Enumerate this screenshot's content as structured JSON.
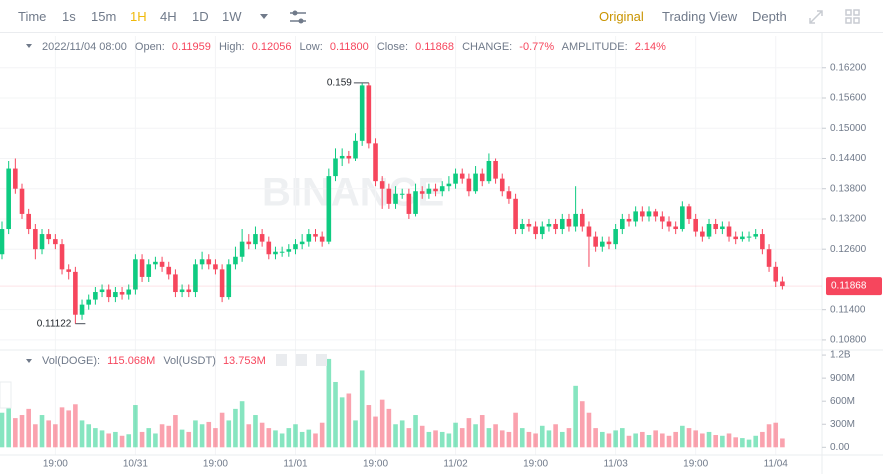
{
  "toolbar": {
    "intervals": [
      "Time",
      "1s",
      "15m",
      "1H",
      "4H",
      "1D",
      "1W"
    ],
    "views": [
      "Original",
      "Trading View",
      "Depth"
    ]
  },
  "header": {
    "date": "2022/11/04 08:00",
    "open_label": "Open:",
    "open": "0.11959",
    "high_label": "High:",
    "high": "0.12056",
    "low_label": "Low:",
    "low": "0.11800",
    "close_label": "Close:",
    "close": "0.11868",
    "change_label": "CHANGE:",
    "change": "-0.77%",
    "amplitude_label": "AMPLITUDE:",
    "amplitude": "2.14%"
  },
  "volume_legend": {
    "vol_doge_label": "Vol(DOGE):",
    "vol_doge": "115.068M",
    "vol_usdt_label": "Vol(USDT)",
    "vol_usdt": "13.753M"
  },
  "chart_data": {
    "type": "candlestick",
    "watermark": "BINANCE",
    "up_color": "#0ecb81",
    "down_color": "#f6465d",
    "grid": true,
    "open": [
      0.125,
      0.13,
      0.142,
      0.138,
      0.133,
      0.13,
      0.126,
      0.129,
      0.128,
      0.127,
      0.122,
      0.1215,
      0.113,
      0.115,
      0.116,
      0.1175,
      0.118,
      0.1165,
      0.1175,
      0.117,
      0.118,
      0.124,
      0.1205,
      0.123,
      0.1235,
      0.1225,
      0.121,
      0.1175,
      0.118,
      0.1175,
      0.123,
      0.124,
      0.123,
      0.122,
      0.1165,
      0.123,
      0.1245,
      0.1275,
      0.127,
      0.129,
      0.1275,
      0.125,
      0.1255,
      0.1255,
      0.126,
      0.127,
      0.1275,
      0.129,
      0.1285,
      0.1275,
      0.1405,
      0.144,
      0.1445,
      0.144,
      0.1475,
      0.1585,
      0.147,
      0.1395,
      0.138,
      0.135,
      0.137,
      0.137,
      0.133,
      0.1375,
      0.137,
      0.138,
      0.1375,
      0.1385,
      0.139,
      0.141,
      0.14,
      0.1375,
      0.141,
      0.1395,
      0.1435,
      0.14,
      0.1375,
      0.136,
      0.13,
      0.131,
      0.1305,
      0.129,
      0.1305,
      0.131,
      0.13,
      0.132,
      0.1305,
      0.133,
      0.1305,
      0.1285,
      0.1265,
      0.1275,
      0.127,
      0.13,
      0.132,
      0.1315,
      0.1335,
      0.1325,
      0.1335,
      0.1325,
      0.1315,
      0.1305,
      0.13,
      0.1345,
      0.132,
      0.1295,
      0.1285,
      0.131,
      0.13,
      0.1305,
      0.1285,
      0.128,
      0.1285,
      0.1285,
      0.129,
      0.126,
      0.1225,
      0.11959
    ],
    "high": [
      0.1315,
      0.1435,
      0.144,
      0.139,
      0.134,
      0.131,
      0.13,
      0.13,
      0.129,
      0.128,
      0.123,
      0.1225,
      0.116,
      0.117,
      0.1185,
      0.119,
      0.119,
      0.1185,
      0.1185,
      0.119,
      0.125,
      0.125,
      0.124,
      0.1245,
      0.1245,
      0.1235,
      0.122,
      0.119,
      0.119,
      0.124,
      0.1255,
      0.125,
      0.124,
      0.123,
      0.124,
      0.1265,
      0.13,
      0.129,
      0.1305,
      0.13,
      0.1285,
      0.1265,
      0.1265,
      0.127,
      0.128,
      0.129,
      0.13,
      0.13,
      0.1295,
      0.142,
      0.146,
      0.146,
      0.1455,
      0.149,
      0.15893,
      0.159,
      0.148,
      0.1405,
      0.139,
      0.1385,
      0.138,
      0.138,
      0.139,
      0.1385,
      0.139,
      0.139,
      0.1395,
      0.1405,
      0.142,
      0.142,
      0.141,
      0.1425,
      0.142,
      0.145,
      0.144,
      0.141,
      0.1385,
      0.137,
      0.132,
      0.132,
      0.1315,
      0.1315,
      0.132,
      0.132,
      0.133,
      0.133,
      0.1385,
      0.134,
      0.1315,
      0.1295,
      0.1285,
      0.1285,
      0.131,
      0.133,
      0.133,
      0.1345,
      0.1345,
      0.1345,
      0.134,
      0.1335,
      0.1325,
      0.1315,
      0.1355,
      0.135,
      0.133,
      0.1305,
      0.132,
      0.132,
      0.1315,
      0.1315,
      0.1295,
      0.1295,
      0.1295,
      0.13,
      0.13,
      0.127,
      0.1235,
      0.12056
    ],
    "low": [
      0.124,
      0.129,
      0.137,
      0.132,
      0.129,
      0.124,
      0.125,
      0.127,
      0.126,
      0.121,
      0.12,
      0.11122,
      0.112,
      0.114,
      0.115,
      0.1165,
      0.1155,
      0.1155,
      0.116,
      0.116,
      0.117,
      0.1195,
      0.1195,
      0.122,
      0.1215,
      0.12,
      0.1165,
      0.1165,
      0.1165,
      0.1165,
      0.122,
      0.122,
      0.121,
      0.1155,
      0.116,
      0.122,
      0.1235,
      0.126,
      0.126,
      0.1265,
      0.124,
      0.124,
      0.1245,
      0.1245,
      0.125,
      0.126,
      0.1265,
      0.1275,
      0.1265,
      0.127,
      0.1395,
      0.1425,
      0.143,
      0.1435,
      0.1465,
      0.146,
      0.1385,
      0.134,
      0.134,
      0.134,
      0.136,
      0.132,
      0.1325,
      0.136,
      0.136,
      0.1365,
      0.1365,
      0.1375,
      0.138,
      0.139,
      0.1365,
      0.137,
      0.1385,
      0.139,
      0.139,
      0.1365,
      0.135,
      0.129,
      0.129,
      0.1295,
      0.128,
      0.128,
      0.1295,
      0.129,
      0.129,
      0.1295,
      0.1295,
      0.1295,
      0.1225,
      0.1255,
      0.1255,
      0.126,
      0.126,
      0.129,
      0.1305,
      0.1305,
      0.1315,
      0.1315,
      0.1315,
      0.13,
      0.1295,
      0.129,
      0.1295,
      0.131,
      0.1285,
      0.1275,
      0.128,
      0.129,
      0.129,
      0.1275,
      0.127,
      0.1275,
      0.1275,
      0.128,
      0.125,
      0.1215,
      0.1185,
      0.118
    ],
    "close": [
      0.13,
      0.142,
      0.138,
      0.133,
      0.13,
      0.126,
      0.129,
      0.128,
      0.127,
      0.122,
      0.1215,
      0.113,
      0.115,
      0.116,
      0.1175,
      0.118,
      0.1165,
      0.1175,
      0.117,
      0.118,
      0.124,
      0.1205,
      0.123,
      0.1235,
      0.1225,
      0.121,
      0.1175,
      0.118,
      0.1175,
      0.123,
      0.124,
      0.123,
      0.122,
      0.1165,
      0.123,
      0.1245,
      0.1275,
      0.127,
      0.129,
      0.1275,
      0.125,
      0.1255,
      0.1255,
      0.126,
      0.127,
      0.1275,
      0.129,
      0.1285,
      0.1275,
      0.1405,
      0.144,
      0.1445,
      0.144,
      0.1475,
      0.1585,
      0.147,
      0.1395,
      0.138,
      0.135,
      0.137,
      0.137,
      0.133,
      0.1375,
      0.137,
      0.138,
      0.1375,
      0.1385,
      0.139,
      0.141,
      0.14,
      0.1375,
      0.141,
      0.1395,
      0.1435,
      0.14,
      0.1375,
      0.136,
      0.13,
      0.131,
      0.1305,
      0.129,
      0.1305,
      0.131,
      0.13,
      0.132,
      0.1305,
      0.133,
      0.1305,
      0.1285,
      0.1265,
      0.1275,
      0.127,
      0.13,
      0.132,
      0.1315,
      0.1335,
      0.1325,
      0.1335,
      0.1325,
      0.1315,
      0.1305,
      0.13,
      0.1345,
      0.132,
      0.1295,
      0.1285,
      0.131,
      0.13,
      0.1305,
      0.1285,
      0.128,
      0.1285,
      0.1285,
      0.129,
      0.126,
      0.1225,
      0.11959,
      0.11868
    ],
    "volume": [
      450000000.0,
      520000000.0,
      380000000.0,
      420000000.0,
      500000000.0,
      300000000.0,
      420000000.0,
      350000000.0,
      300000000.0,
      520000000.0,
      480000000.0,
      560000000.0,
      350000000.0,
      300000000.0,
      250000000.0,
      220000000.0,
      180000000.0,
      200000000.0,
      150000000.0,
      170000000.0,
      550000000.0,
      200000000.0,
      250000000.0,
      180000000.0,
      300000000.0,
      280000000.0,
      420000000.0,
      230000000.0,
      200000000.0,
      350000000.0,
      300000000.0,
      330000000.0,
      250000000.0,
      450000000.0,
      350000000.0,
      500000000.0,
      600000000.0,
      300000000.0,
      420000000.0,
      320000000.0,
      250000000.0,
      220000000.0,
      180000000.0,
      250000000.0,
      300000000.0,
      200000000.0,
      230000000.0,
      180000000.0,
      320000000.0,
      1150000000.0,
      850000000.0,
      650000000.0,
      700000000.0,
      350000000.0,
      1000000000.0,
      550000000.0,
      400000000.0,
      620000000.0,
      500000000.0,
      300000000.0,
      350000000.0,
      250000000.0,
      420000000.0,
      280000000.0,
      200000000.0,
      220000000.0,
      200000000.0,
      180000000.0,
      320000000.0,
      250000000.0,
      380000000.0,
      300000000.0,
      420000000.0,
      250000000.0,
      300000000.0,
      220000000.0,
      200000000.0,
      450000000.0,
      250000000.0,
      200000000.0,
      180000000.0,
      280000000.0,
      220000000.0,
      300000000.0,
      200000000.0,
      250000000.0,
      800000000.0,
      600000000.0,
      450000000.0,
      250000000.0,
      200000000.0,
      180000000.0,
      220000000.0,
      250000000.0,
      150000000.0,
      180000000.0,
      200000000.0,
      160000000.0,
      220000000.0,
      180000000.0,
      150000000.0,
      200000000.0,
      280000000.0,
      250000000.0,
      220000000.0,
      180000000.0,
      200000000.0,
      160000000.0,
      150000000.0,
      180000000.0,
      130000000.0,
      120000000.0,
      100000000.0,
      150000000.0,
      200000000.0,
      300000000.0,
      320000000.0,
      115068000.0
    ],
    "ylim": [
      0.106,
      0.1683
    ],
    "yticks": [
      {
        "value": 0.162,
        "label": "0.16200"
      },
      {
        "value": 0.156,
        "label": "0.15600"
      },
      {
        "value": 0.15,
        "label": "0.15000"
      },
      {
        "value": 0.144,
        "label": "0.14400"
      },
      {
        "value": 0.138,
        "label": "0.13800"
      },
      {
        "value": 0.132,
        "label": "0.13200"
      },
      {
        "value": 0.126,
        "label": "0.12600"
      },
      {
        "value": 0.114,
        "label": "0.11400"
      },
      {
        "value": 0.108,
        "label": "0.10800"
      }
    ],
    "vol_ylim": [
      -100000000.0,
      1240000000.0
    ],
    "vol_yticks": [
      {
        "value": 1200000000.0,
        "label": "1.2B"
      },
      {
        "value": 900000000.0,
        "label": "900M"
      },
      {
        "value": 600000000.0,
        "label": "600M"
      },
      {
        "value": 300000000.0,
        "label": "300M"
      },
      {
        "value": 0,
        "label": "0.00"
      }
    ],
    "xticks": [
      {
        "value": 8,
        "label": "19:00"
      },
      {
        "value": 20,
        "label": "10/31"
      },
      {
        "value": 32,
        "label": "19:00"
      },
      {
        "value": 44,
        "label": "11/01"
      },
      {
        "value": 56,
        "label": "19:00"
      },
      {
        "value": 68,
        "label": "11/02"
      },
      {
        "value": 80,
        "label": "19:00"
      },
      {
        "value": 92,
        "label": "11/03"
      },
      {
        "value": 104,
        "label": "19:00"
      },
      {
        "value": 116,
        "label": "11/04"
      }
    ]
  }
}
